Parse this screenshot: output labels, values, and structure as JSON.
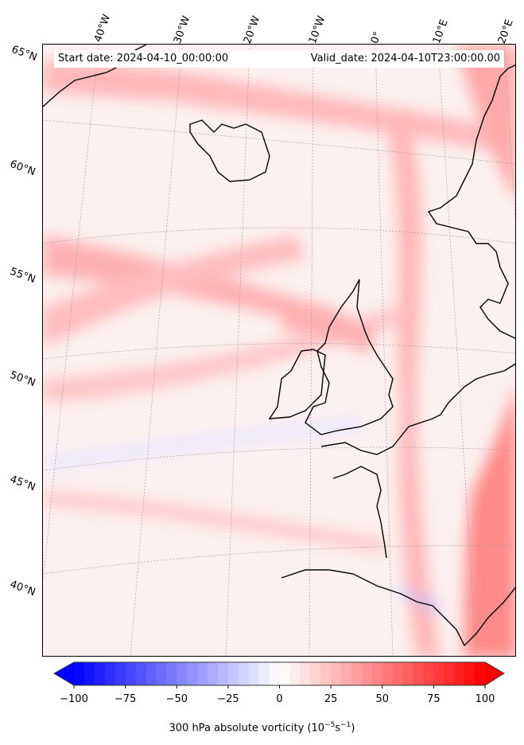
{
  "header": {
    "start_date": "Start date: 2024-04-10_00:00:00",
    "valid_date": "Valid_date: 2024-04-10T23:00:00.00"
  },
  "axes": {
    "lon_labels": [
      "40°W",
      "30°W",
      "20°W",
      "10°W",
      "0°",
      "10°E",
      "20°E"
    ],
    "lat_labels": [
      "65°N",
      "60°N",
      "55°N",
      "50°N",
      "45°N",
      "40°N"
    ]
  },
  "colorbar": {
    "ticks": [
      "−100",
      "−75",
      "−50",
      "−25",
      "0",
      "25",
      "50",
      "75",
      "100"
    ],
    "min": -100,
    "max": 100,
    "levels": 40,
    "label": "300 hPa absolute vorticity (10",
    "label_exp1": "−5",
    "label_mid": "s",
    "label_exp2": "−1",
    "label_end": ")",
    "colormap": [
      "#0000ff",
      "#ffffff",
      "#ff0000"
    ]
  }
}
